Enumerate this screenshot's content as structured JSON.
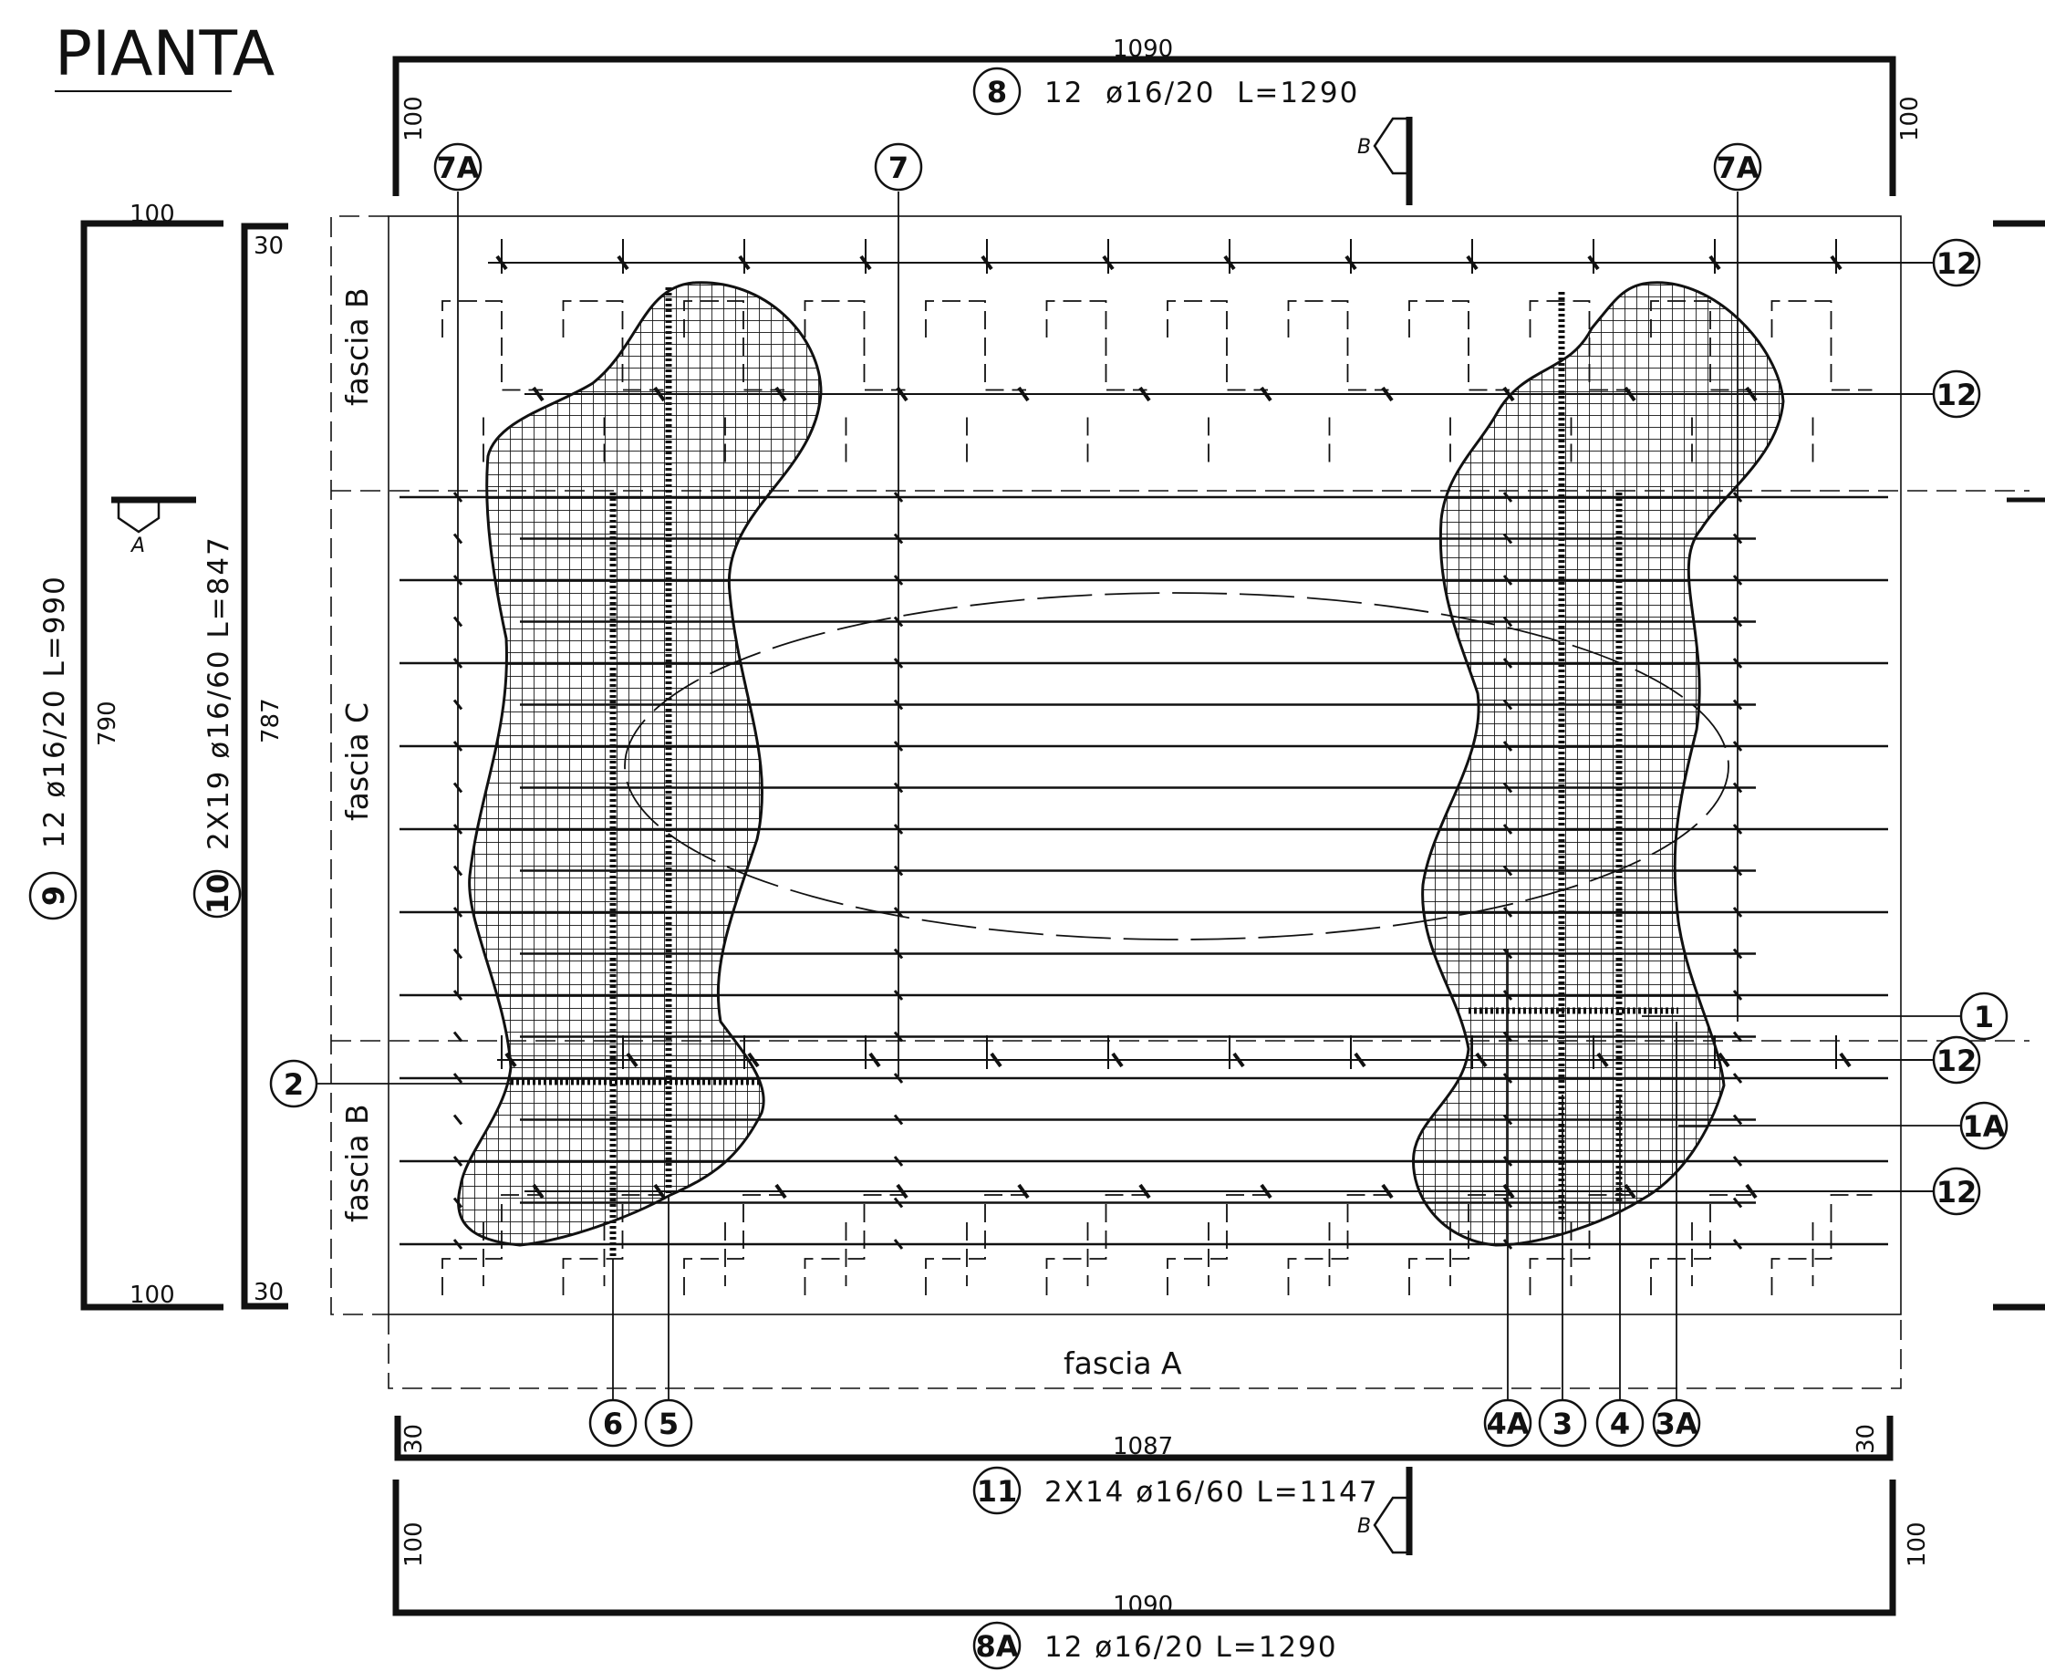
{
  "title": "PIANTA",
  "dimensions": {
    "top_length": "1090",
    "bottom_length": "1090",
    "top_hook_left": "100",
    "top_hook_right": "100",
    "bottom_hook_left": "100",
    "bottom_hook_right": "100",
    "left_height": "790",
    "left_hook_top": "100",
    "left_hook_bottom": "100",
    "inner_height": "787",
    "inner_hook_top": "30",
    "inner_hook_bottom": "30",
    "bar11_length": "1087",
    "bar11_hook_left": "30",
    "bar11_hook_right": "30"
  },
  "bars": {
    "b8": {
      "mark": "8",
      "spec": "12  ø16/20  L=1290"
    },
    "b8a": {
      "mark": "8A",
      "spec": "12  ø16/20  L=1290"
    },
    "b9": {
      "mark": "9",
      "spec": "12  ø16/20  L=990"
    },
    "b10": {
      "mark": "10",
      "spec": "2X19  ø16/60  L=847"
    },
    "b11": {
      "mark": "11",
      "spec": "2X14  ø16/60  L=1147"
    }
  },
  "markers": {
    "m7a_left": "7A",
    "m7": "7",
    "m7a_right": "7A",
    "m12_1": "12",
    "m12_2": "12",
    "m12_3": "12",
    "m12_4": "12",
    "m1": "1",
    "m1a": "1A",
    "m2": "2",
    "m6": "6",
    "m5": "5",
    "m4a": "4A",
    "m3": "3",
    "m4": "4",
    "m3a": "3A"
  },
  "fascia": {
    "top": "fascia B",
    "middle": "fascia C",
    "bottom": "fascia B",
    "base": "fascia A"
  },
  "sections": {
    "a": "A",
    "b_top": "B",
    "b_bottom": "B"
  }
}
